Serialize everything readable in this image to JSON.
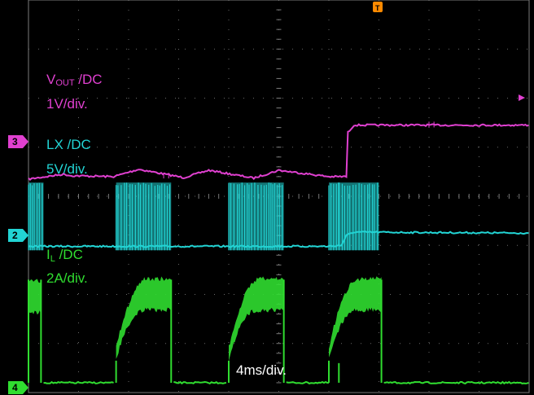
{
  "chart_data": {
    "type": "line",
    "time_scale": "4ms/div.",
    "grid": true,
    "x_divisions": 10,
    "y_divisions": 8,
    "channels": [
      {
        "id": "vout",
        "label_main": "V",
        "label_sub": "OUT",
        "label_coupling": " /DC",
        "scale": "1V/div.",
        "color": "#e040d0",
        "marker": "3",
        "points": [
          [
            0,
            3.65
          ],
          [
            0.7,
            3.55
          ],
          [
            0.85,
            3.58
          ],
          [
            1.7,
            3.6
          ],
          [
            2.2,
            3.45
          ],
          [
            3.1,
            3.62
          ],
          [
            3.6,
            3.47
          ],
          [
            4.5,
            3.63
          ],
          [
            5.0,
            3.47
          ],
          [
            6.0,
            3.6
          ],
          [
            6.35,
            3.6
          ],
          [
            6.38,
            2.7
          ],
          [
            6.5,
            2.55
          ],
          [
            9.99,
            2.55
          ]
        ]
      },
      {
        "id": "lx",
        "label_main": "LX",
        "label_sub": "",
        "label_coupling": " /DC",
        "scale": "5V/div.",
        "color": "#22d4d4",
        "marker": "2",
        "bursts": [
          [
            0,
            0.3
          ],
          [
            1.75,
            2.85
          ],
          [
            4.0,
            5.1
          ],
          [
            6.0,
            7.0
          ]
        ],
        "points": [
          [
            0,
            5.02
          ],
          [
            6.0,
            5.02
          ],
          [
            6.25,
            5.0
          ],
          [
            6.35,
            4.8
          ],
          [
            6.5,
            4.73
          ],
          [
            9.99,
            4.75
          ]
        ]
      },
      {
        "id": "il",
        "label_main": "I",
        "label_sub": "L",
        "label_coupling": " /DC",
        "scale": "2A/div.",
        "color": "#30dd30",
        "marker": "4",
        "segments": [
          [
            0,
            0.25,
            "high"
          ],
          [
            0.3,
            1.7,
            "low"
          ],
          [
            1.75,
            2.85,
            "ramp"
          ],
          [
            2.9,
            3.95,
            "low"
          ],
          [
            4.0,
            5.1,
            "ramp"
          ],
          [
            5.15,
            6.0,
            "low"
          ],
          [
            6.0,
            7.05,
            "ramp"
          ],
          [
            7.1,
            9.99,
            "low"
          ]
        ]
      }
    ],
    "trigger_marker": "T"
  }
}
